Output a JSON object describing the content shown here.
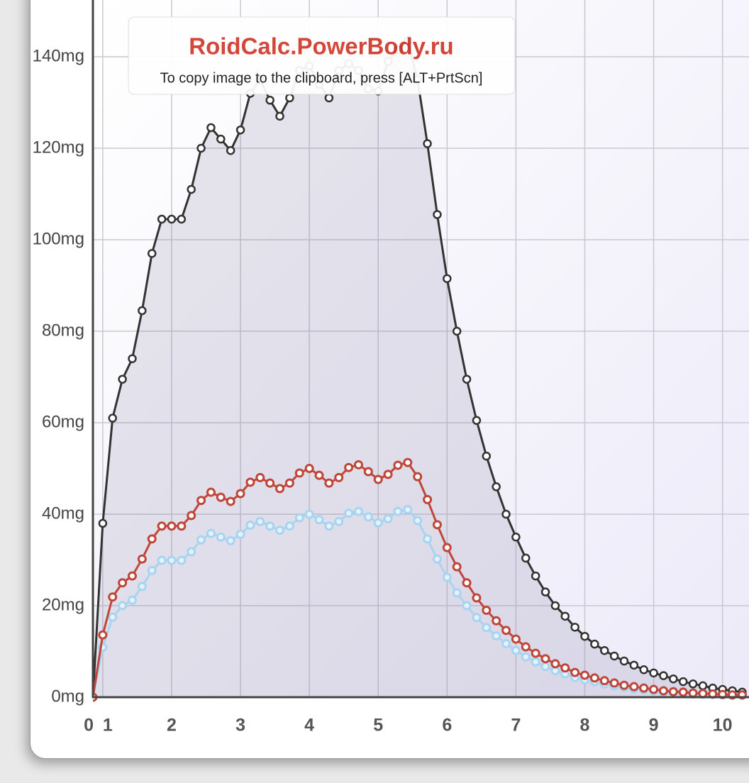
{
  "chart_data": {
    "type": "line",
    "area_series": [
      0
    ],
    "x": [
      0,
      1,
      2,
      3,
      4,
      5,
      6,
      7,
      8,
      9,
      10,
      11,
      12,
      13,
      14,
      15,
      16,
      17,
      18,
      19,
      20,
      21,
      22,
      23,
      24,
      25,
      26,
      27,
      28,
      29,
      30,
      31,
      32,
      33,
      34,
      35,
      36,
      37,
      38,
      39,
      40,
      41,
      42,
      43,
      44,
      45,
      46,
      47,
      48,
      49,
      50,
      51,
      52,
      53,
      54,
      55,
      56,
      57,
      58,
      59,
      60,
      61,
      62,
      63,
      64,
      65,
      66
    ],
    "series": [
      {
        "color": "#333333",
        "values": [
          0,
          38,
          61,
          69.5,
          74,
          84.5,
          97,
          104.5,
          104.5,
          104.5,
          111,
          120,
          124.5,
          122,
          119.5,
          124,
          132,
          135,
          130.5,
          127,
          131,
          137,
          138,
          134,
          131,
          137,
          138.5,
          137,
          133,
          132.5,
          139,
          141.5,
          143.5,
          135,
          121,
          105.5,
          91.5,
          80,
          69.5,
          60.5,
          52.7,
          46,
          40,
          35,
          30.4,
          26.5,
          23,
          20,
          17.7,
          15.3,
          13.3,
          11.6,
          10.2,
          9,
          7.9,
          7,
          6,
          5.3,
          4.7,
          4,
          3.4,
          2.9,
          2.5,
          2,
          1.7,
          1.4,
          1.1
        ]
      },
      {
        "color": "#a8d4f0",
        "values": [
          0,
          10.9,
          17.5,
          20,
          21.2,
          24.2,
          27.7,
          29.9,
          29.9,
          29.9,
          31.8,
          34.4,
          35.8,
          35,
          34.2,
          35.6,
          37.6,
          38.4,
          37.4,
          36.5,
          37.4,
          39.2,
          40,
          38.8,
          37.4,
          38.4,
          40.2,
          40.6,
          39.4,
          38.1,
          39,
          40.6,
          41,
          38.6,
          34.6,
          30.2,
          26.2,
          22.8,
          20,
          17.4,
          15.2,
          13.4,
          11.7,
          10.2,
          8.8,
          7.7,
          6.7,
          5.8,
          5.1,
          4.3,
          3.8,
          3.4,
          2.9,
          2.5,
          2.1,
          1.8,
          1.6,
          1.4,
          1.1,
          1,
          0.9,
          0.7,
          0.6,
          0.6,
          0.5,
          0.4,
          0.4
        ]
      },
      {
        "color": "#c0463a",
        "values": [
          0,
          13.6,
          21.9,
          25,
          26.5,
          30.2,
          34.6,
          37.4,
          37.4,
          37.4,
          39.7,
          43,
          44.8,
          43.7,
          42.8,
          44.5,
          47,
          48,
          46.8,
          45.6,
          46.8,
          49,
          50,
          48.5,
          46.8,
          48,
          50.2,
          50.8,
          49.3,
          47.6,
          48.7,
          50.7,
          51.3,
          48.2,
          43.2,
          37.7,
          32.7,
          28.5,
          25,
          21.7,
          19,
          16.7,
          14.6,
          12.7,
          11,
          9.6,
          8.4,
          7.3,
          6.4,
          5.4,
          4.8,
          4.2,
          3.6,
          3.1,
          2.6,
          2.3,
          2,
          1.7,
          1.4,
          1.2,
          1.1,
          0.9,
          0.8,
          0.7,
          0.6,
          0.5,
          0.5
        ]
      }
    ],
    "xlim": [
      0,
      66.7
    ],
    "ylim": [
      0,
      152.4
    ],
    "grid": true,
    "xticks": [
      {
        "value": 0,
        "label": "0"
      },
      {
        "value": 1,
        "label": "1"
      },
      {
        "value": 8,
        "label": "2"
      },
      {
        "value": 15,
        "label": "3"
      },
      {
        "value": 22,
        "label": "4"
      },
      {
        "value": 29,
        "label": "5"
      },
      {
        "value": 36,
        "label": "6"
      },
      {
        "value": 43,
        "label": "7"
      },
      {
        "value": 50,
        "label": "8"
      },
      {
        "value": 57,
        "label": "9"
      },
      {
        "value": 64,
        "label": "10"
      }
    ],
    "yticks": [
      {
        "value": 0,
        "label": "0mg"
      },
      {
        "value": 20,
        "label": "20mg"
      },
      {
        "value": 40,
        "label": "40mg"
      },
      {
        "value": 60,
        "label": "60mg"
      },
      {
        "value": 80,
        "label": "80mg"
      },
      {
        "value": 100,
        "label": "100mg"
      },
      {
        "value": 120,
        "label": "120mg"
      },
      {
        "value": 140,
        "label": "140mg"
      }
    ]
  },
  "watermark": {
    "title": "RoidCalc.PowerBody.ru",
    "text": "To copy image to the clipboard, press [ALT+PrtScn]"
  }
}
